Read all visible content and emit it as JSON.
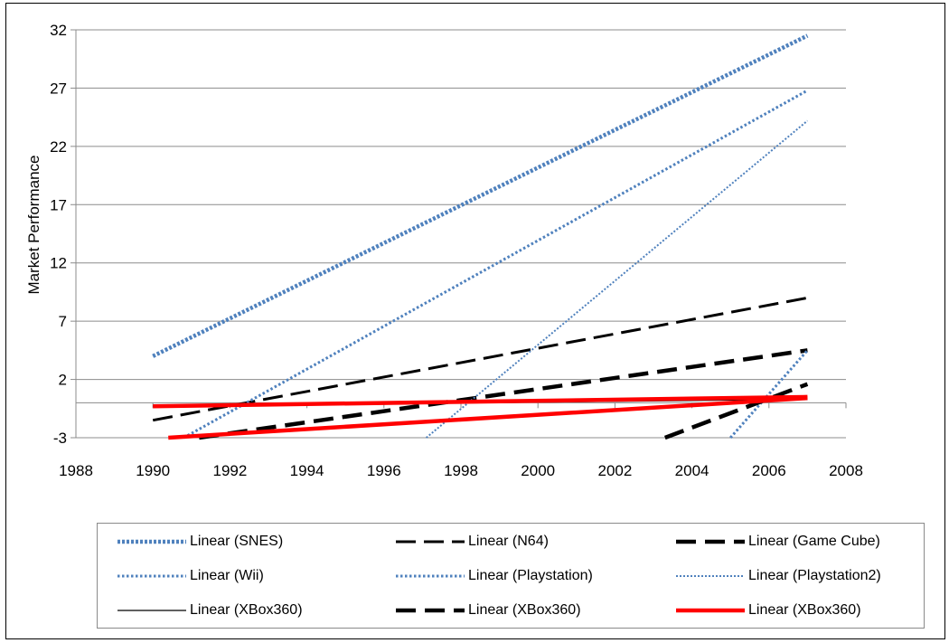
{
  "chart_data": {
    "type": "line",
    "title": "",
    "xlabel": "",
    "ylabel": "Market Performance",
    "xlim": [
      1988,
      2008
    ],
    "ylim": [
      -3,
      32
    ],
    "x_ticks": [
      "1988",
      "1990",
      "1992",
      "1994",
      "1996",
      "1998",
      "2000",
      "2002",
      "2004",
      "2006",
      "2008"
    ],
    "y_ticks": [
      "-3",
      "2",
      "7",
      "12",
      "17",
      "22",
      "27",
      "32"
    ],
    "grid": "horizontal",
    "legend_position": "bottom",
    "series": [
      {
        "name": "Linear (SNES)",
        "color": "#4f81bd",
        "dash": "dotted-heavy",
        "points": [
          [
            1990,
            4.0
          ],
          [
            2007,
            31.5
          ]
        ]
      },
      {
        "name": "Linear (N64)",
        "color": "#000000",
        "dash": "dashed",
        "points": [
          [
            1990,
            -1.5
          ],
          [
            2007,
            9.0
          ]
        ]
      },
      {
        "name": "Linear (Game Cube)",
        "color": "#000000",
        "dash": "dashed-heavy",
        "points": [
          [
            1991.2,
            -3.0
          ],
          [
            2007,
            4.5
          ]
        ]
      },
      {
        "name": "Linear (Wii)",
        "color": "#4f81bd",
        "dash": "dotted",
        "points": [
          [
            2005,
            -3.0
          ],
          [
            2007,
            4.5
          ]
        ]
      },
      {
        "name": "Linear (Playstation)",
        "color": "#4f81bd",
        "dash": "dotted",
        "points": [
          [
            1990.8,
            -3.0
          ],
          [
            2007,
            26.8
          ]
        ]
      },
      {
        "name": "Linear (Playstation2)",
        "color": "#4f81bd",
        "dash": "dotted-thin",
        "points": [
          [
            1997.1,
            -3.0
          ],
          [
            2007,
            24.2
          ]
        ]
      },
      {
        "name": "Linear (XBox360)",
        "color": "#000000",
        "dash": "solid-thin",
        "points": [
          [
            1990,
            -0.3
          ],
          [
            2007,
            0.3
          ]
        ]
      },
      {
        "name": "Linear (XBox360)",
        "color": "#000000",
        "dash": "dashed-heavy",
        "points": [
          [
            2003.3,
            -3.0
          ],
          [
            2007,
            1.6
          ]
        ]
      },
      {
        "name": "Linear (XBox360)",
        "color": "#ff0000",
        "dash": "solid-heavy",
        "points": [
          [
            1990,
            -0.3
          ],
          [
            2007,
            0.5
          ]
        ]
      },
      {
        "name": "Linear (XBox360)",
        "color": "#ff0000",
        "dash": "solid-heavy",
        "points": [
          [
            1990.4,
            -3.0
          ],
          [
            2007,
            0.4
          ]
        ]
      }
    ]
  }
}
